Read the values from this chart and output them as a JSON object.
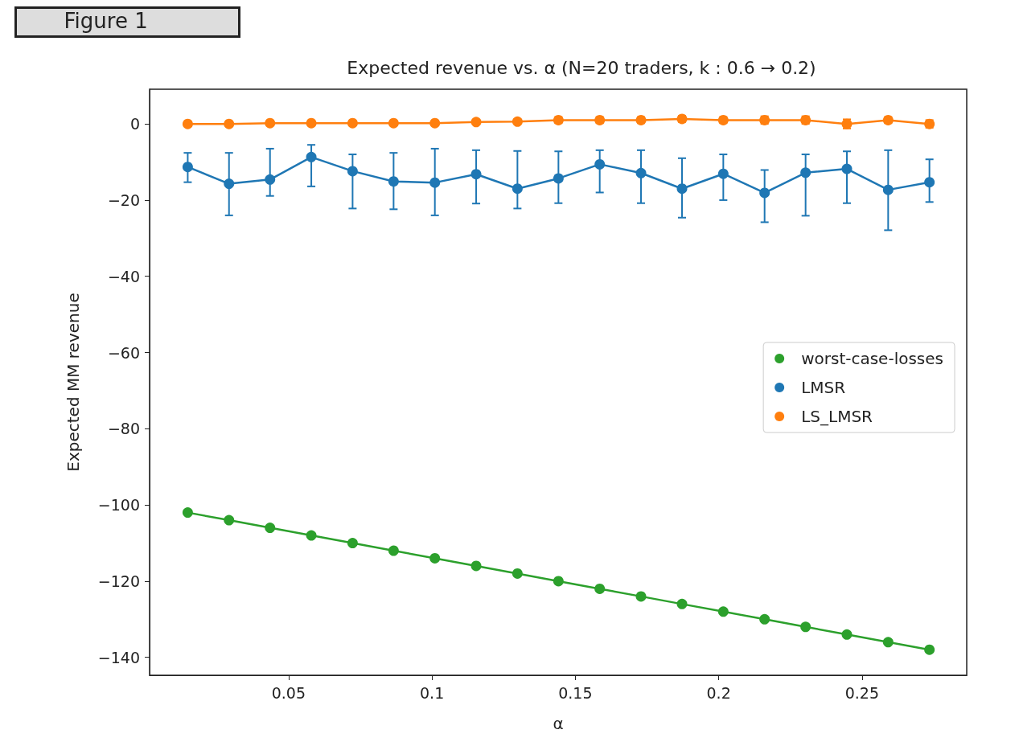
{
  "chart_data": {
    "type": "line",
    "title": "Expected revenue vs. α (N=20 traders, k : 0.6 → 0.2)",
    "xlabel": "α",
    "ylabel": "Expected MM revenue",
    "annotations": [
      "Figure 1"
    ],
    "x": [
      0.0148,
      0.0292,
      0.0435,
      0.0579,
      0.0723,
      0.0866,
      0.101,
      0.1154,
      0.1298,
      0.1441,
      0.1585,
      0.1729,
      0.1872,
      0.2016,
      0.216,
      0.2303,
      0.2447,
      0.2591,
      0.2735
    ],
    "series": [
      {
        "name": "worst-case-losses",
        "color": "#2ca02c",
        "values": [
          -102,
          -104,
          -106,
          -108,
          -110,
          -112,
          -114,
          -116,
          -118,
          -120,
          -122,
          -124,
          -126,
          -128,
          -130,
          -132,
          -134,
          -136,
          -138
        ]
      },
      {
        "name": "LMSR",
        "color": "#1f77b4",
        "values": [
          -11.3,
          -15.7,
          -14.6,
          -8.7,
          -12.4,
          -15.1,
          -15.4,
          -13.2,
          -17,
          -14.3,
          -10.6,
          -12.9,
          -17,
          -13.1,
          -18.1,
          -12.8,
          -11.8,
          -17.3,
          -15.3
        ],
        "errors": [
          [
            -15.3,
            -7.6
          ],
          [
            -24,
            -7.6
          ],
          [
            -18.9,
            -6.5
          ],
          [
            -16.4,
            -5.5
          ],
          [
            -22.2,
            -8
          ],
          [
            -22.4,
            -7.6
          ],
          [
            -24,
            -6.5
          ],
          [
            -20.9,
            -6.9
          ],
          [
            -22.2,
            -7.1
          ],
          [
            -20.8,
            -7.2
          ],
          [
            -18,
            -6.9
          ],
          [
            -20.8,
            -6.9
          ],
          [
            -24.6,
            -9
          ],
          [
            -20,
            -8
          ],
          [
            -25.8,
            -12.1
          ],
          [
            -24.1,
            -8
          ],
          [
            -20.8,
            -7.2
          ],
          [
            -27.9,
            -6.9
          ],
          [
            -20.5,
            -9.3
          ]
        ]
      },
      {
        "name": "LS_LMSR",
        "color": "#ff7f0e",
        "values": [
          0,
          0,
          0.2,
          0.2,
          0.2,
          0.2,
          0.2,
          0.5,
          0.6,
          1,
          1,
          1,
          1.3,
          1,
          1,
          1,
          0,
          1,
          0
        ],
        "errors": [
          0.6,
          0.6,
          0.6,
          0.6,
          0.6,
          0.6,
          0.6,
          0.6,
          0.6,
          0.8,
          0.8,
          0.8,
          0.8,
          0.8,
          1,
          1,
          1.2,
          0.8,
          1
        ]
      }
    ],
    "xlim": [
      0.0015,
      0.2865
    ],
    "xticks": [
      0.05,
      0.1,
      0.15,
      0.2,
      0.25
    ],
    "ylim": [
      -144.7,
      9.1
    ],
    "yticks": [
      -140,
      -120,
      -100,
      -80,
      -60,
      -40,
      -20,
      0
    ],
    "grid": false,
    "legend": "right",
    "marker": "circle",
    "line_style": "solid"
  }
}
